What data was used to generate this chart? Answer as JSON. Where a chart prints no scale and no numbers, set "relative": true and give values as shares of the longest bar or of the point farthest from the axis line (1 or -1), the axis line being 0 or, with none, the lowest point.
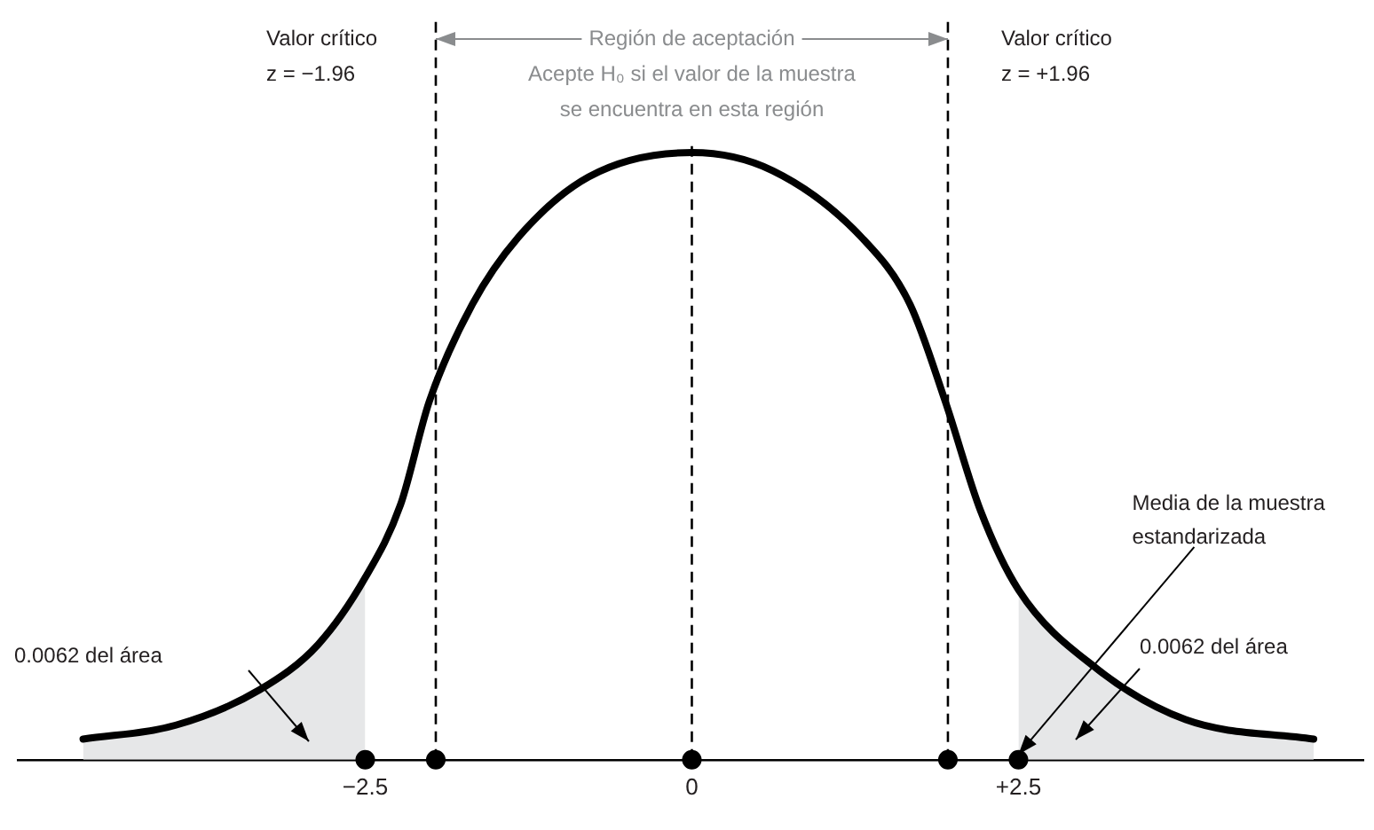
{
  "chart_data": {
    "type": "line",
    "relative": true,
    "legend": false,
    "grid": false,
    "xlim": [
      -5.16,
      5.14
    ],
    "xticks": [
      {
        "value": -2.5,
        "label": "−2.5"
      },
      0,
      {
        "value": 2.5,
        "label": "+2.5"
      }
    ],
    "series": [
      {
        "type": "area",
        "color": "#e6e7e8",
        "x": [
          -4.66,
          -3.95,
          -3.31,
          -2.86,
          -2.5
        ],
        "values": [
          0.034,
          0.057,
          0.115,
          0.19,
          0.3
        ]
      },
      {
        "type": "area",
        "color": "#e6e7e8",
        "x": [
          2.5,
          3.1,
          3.78,
          4.76
        ],
        "values": [
          0.28,
          0.15,
          0.066,
          0.034
        ]
      },
      {
        "type": "line",
        "color": "#000000",
        "x": [
          -4.66,
          -3.95,
          -3.31,
          -2.86,
          -2.5,
          -2.23,
          -2.01,
          -1.68,
          -1.33,
          -0.79,
          0,
          0.62,
          1.3,
          1.67,
          1.94,
          2.21,
          2.5,
          3.1,
          3.78,
          4.76
        ],
        "values": [
          0.034,
          0.057,
          0.115,
          0.19,
          0.3,
          0.42,
          0.59,
          0.75,
          0.86,
          0.96,
          1,
          0.97,
          0.86,
          0.75,
          0.59,
          0.41,
          0.28,
          0.15,
          0.066,
          0.034
        ]
      },
      {
        "type": "scatter",
        "color": "#000000",
        "x": [
          -2.5,
          -1.96,
          0,
          1.96,
          2.5
        ],
        "values": [
          0,
          0,
          0,
          0,
          0
        ]
      }
    ],
    "ref_lines": [
      {
        "axis": "x",
        "value": -1.96,
        "label": "Valor crítico\nz = −1.96",
        "line_style": "dashed"
      },
      {
        "axis": "x",
        "value": 1.96,
        "label": "Valor crítico\nz = +1.96",
        "line_style": "dashed"
      },
      {
        "axis": "x",
        "value": 0,
        "line_style": "dashed"
      }
    ],
    "annotations": [
      "Región de aceptación",
      "Acepte H₀ si el valor de la muestra\nse encuentra en esta región",
      "0.0062 del área",
      "0.0062 del área",
      {
        "text": "Media de la muestra\nestandarizada",
        "x": 2.5,
        "y": 0
      }
    ]
  }
}
